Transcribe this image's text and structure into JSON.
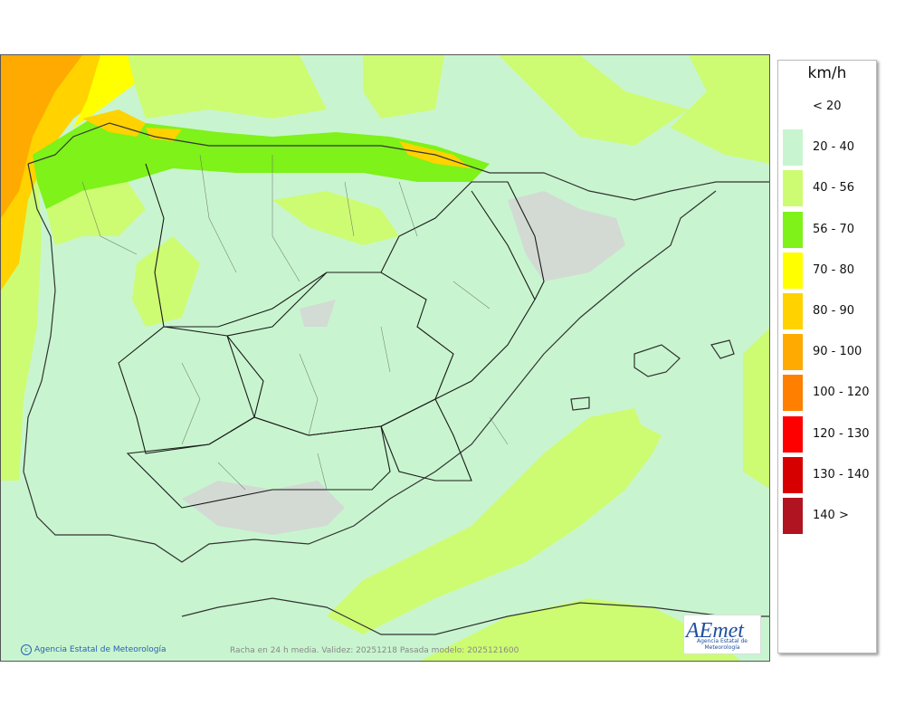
{
  "legend": {
    "unit": "km/h",
    "items": [
      {
        "label": "< 20",
        "color": "#ffffff"
      },
      {
        "label": "20 - 40",
        "color": "#c8f5cf"
      },
      {
        "label": "40 - 56",
        "color": "#cdfc72"
      },
      {
        "label": "56 - 70",
        "color": "#7ef219"
      },
      {
        "label": "70 - 80",
        "color": "#ffff00"
      },
      {
        "label": "80 - 90",
        "color": "#ffd200"
      },
      {
        "label": "90 - 100",
        "color": "#ffaa00"
      },
      {
        "label": "100 - 120",
        "color": "#ff8000"
      },
      {
        "label": "120 - 130",
        "color": "#ff0000"
      },
      {
        "label": "130 - 140",
        "color": "#d70000"
      },
      {
        "label": "140 >",
        "color": "#af1420"
      }
    ]
  },
  "map": {
    "credit": "Agencia Estatal de Meteorología",
    "caption": "Racha en 24 h media. Validez: 20251218 Pasada modelo: 2025121600",
    "logo_text": "AEmet",
    "logo_subtext": "Agencia Estatal de Meteorología"
  }
}
